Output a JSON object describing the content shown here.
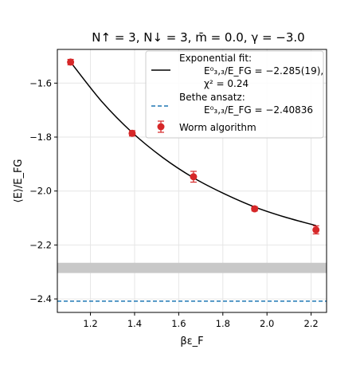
{
  "chart_data": {
    "type": "scatter",
    "title": "N↑ = 3, N↓ = 3, m̄ = 0.0, γ = −3.0",
    "xlabel": "βε_F",
    "ylabel": "⟨E⟩/E_FG",
    "xlim": [
      1.05,
      2.27
    ],
    "ylim": [
      -2.45,
      -1.475
    ],
    "xticks": [
      1.2,
      1.4,
      1.6,
      1.8,
      2.0,
      2.2
    ],
    "xtick_labels": [
      "1.2",
      "1.4",
      "1.6",
      "1.8",
      "2.0",
      "2.2"
    ],
    "yticks": [
      -2.4,
      -2.2,
      -2.0,
      -1.8,
      -1.6
    ],
    "ytick_labels": [
      "−2.4",
      "−2.2",
      "−2.0",
      "−1.8",
      "−1.6"
    ],
    "grid": true,
    "legend_position": "top-right",
    "series": [
      {
        "name": "Worm algorithm",
        "kind": "errorbar",
        "color": "#d62728",
        "x": [
          1.11,
          1.389,
          1.667,
          1.944,
          2.222
        ],
        "y": [
          -1.522,
          -1.786,
          -1.947,
          -2.066,
          -2.144
        ],
        "yerr": [
          0.01,
          0.01,
          0.02,
          0.008,
          0.015
        ]
      },
      {
        "name": "Exponential fit:",
        "kind": "fit",
        "color": "#000000",
        "annotation_lines": [
          "E⁰₃,₃/E_FG = −2.285(19),",
          "χ² = 0.24"
        ],
        "asymptote": -2.285,
        "asymptote_err": 0.019,
        "band_color": "#c8c8c8",
        "x": [
          1.11,
          1.25,
          1.389,
          1.528,
          1.667,
          1.806,
          1.944,
          2.083,
          2.222
        ],
        "y": [
          -1.522,
          -1.667,
          -1.783,
          -1.876,
          -1.951,
          -2.01,
          -2.059,
          -2.097,
          -2.128
        ]
      },
      {
        "name": "Bethe ansatz:",
        "kind": "hline",
        "color": "#1f77b4",
        "annotation_lines": [
          "E⁰₃,₃/E_FG = −2.40836"
        ],
        "y": -2.40836
      }
    ]
  }
}
